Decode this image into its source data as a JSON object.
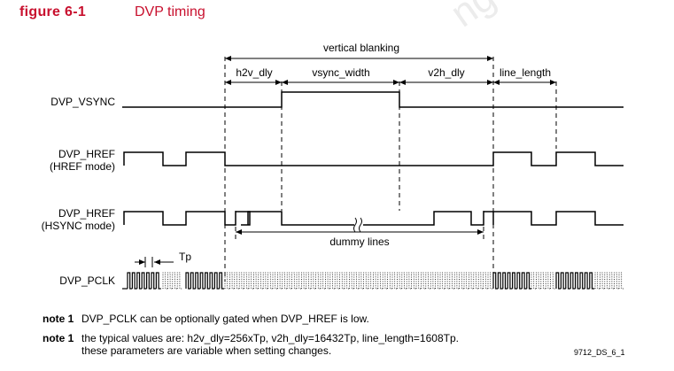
{
  "figure": {
    "label": "figure 6-1",
    "title": "DVP timing"
  },
  "watermark": "ng K",
  "signals": {
    "vsync": "DVP_VSYNC",
    "href_line1": "DVP_HREF",
    "href_line2": "(HREF mode)",
    "hsync_line1": "DVP_HREF",
    "hsync_line2": "(HSYNC mode)",
    "pclk": "DVP_PCLK"
  },
  "annotations": {
    "vertical_blanking": "vertical blanking",
    "h2v_dly": "h2v_dly",
    "vsync_width": "vsync_width",
    "v2h_dly": "v2h_dly",
    "line_length": "line_length",
    "dummy_lines": "dummy lines",
    "tp": "Tp"
  },
  "notes": [
    {
      "label": "note 1",
      "lines": [
        "DVP_PCLK can be optionally gated when DVP_HREF is low."
      ]
    },
    {
      "label": "note 1",
      "lines": [
        "the typical values are: h2v_dly=256xTp, v2h_dly=16432Tp, line_length=1608Tp.",
        "these parameters are variable when setting changes."
      ]
    }
  ],
  "doc_id": "9712_DS_6_1"
}
